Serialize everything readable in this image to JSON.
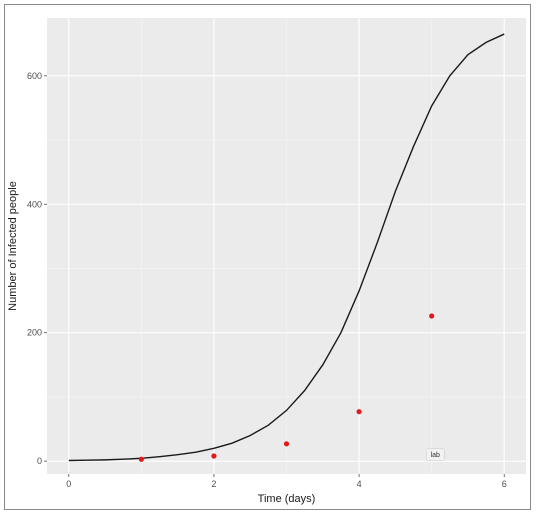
{
  "chart_data": {
    "type": "line",
    "title": "",
    "xlabel": "Time (days)",
    "ylabel": "Number of Infected people",
    "xlim": [
      -0.3,
      6.3
    ],
    "ylim": [
      -20,
      690
    ],
    "x_ticks": [
      0,
      2,
      4,
      6
    ],
    "y_ticks": [
      0,
      200,
      400,
      600
    ],
    "grid": true,
    "series": [
      {
        "kind": "line",
        "color": "#1a1a1a",
        "x": [
          0,
          0.25,
          0.5,
          0.75,
          1,
          1.25,
          1.5,
          1.75,
          2,
          2.25,
          2.5,
          2.75,
          3,
          3.25,
          3.5,
          3.75,
          4,
          4.25,
          4.5,
          4.75,
          5,
          5.25,
          5.5,
          5.75,
          6
        ],
        "y": [
          1,
          1.5,
          2,
          3,
          4.5,
          7,
          10,
          14,
          20,
          28,
          40,
          56,
          79,
          110,
          150,
          200,
          265,
          340,
          420,
          490,
          553,
          600,
          633,
          652,
          665
        ]
      },
      {
        "kind": "scatter",
        "color": "#e31a1c",
        "x": [
          1,
          2,
          3,
          4,
          5
        ],
        "y": [
          3,
          8,
          27,
          77,
          226
        ]
      }
    ],
    "annotations": [
      {
        "text": "lab",
        "x": 5.05,
        "y": 10
      }
    ]
  }
}
